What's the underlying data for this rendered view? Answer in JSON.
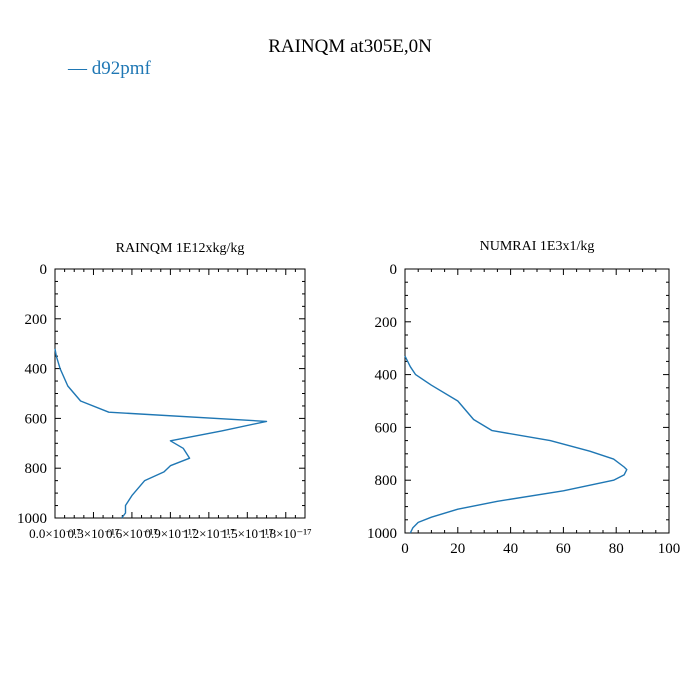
{
  "figure": {
    "title": "RAINQM at305E,0N",
    "legend": [
      {
        "label": "d92pmf",
        "symbol": "—",
        "color": "#1f77b4"
      }
    ]
  },
  "chart_data": [
    {
      "type": "line",
      "title": "RAINQM  1E12xkg/kg",
      "xlabel": "",
      "ylabel": "",
      "xlim": [
        0.0,
        1.95e-17
      ],
      "ylim": [
        1000,
        0
      ],
      "y_inverted": true,
      "x_ticks": [
        0,
        3e-18,
        6e-18,
        9e-18,
        1.2e-17,
        1.5e-17,
        1.8e-17
      ],
      "x_tick_labels": [
        "0.0×10⁻¹⁷",
        "0.3×10⁻¹⁷",
        "0.6×10⁻¹⁷",
        "0.9×10⁻¹⁷",
        "1.2×10⁻¹⁷",
        "1.5×10⁻¹⁷",
        "1.8×10⁻¹⁷"
      ],
      "y_ticks": [
        0,
        200,
        400,
        600,
        800,
        1000
      ],
      "y_tick_labels": [
        "0",
        "200",
        "400",
        "600",
        "800",
        "1000"
      ],
      "grid": false,
      "series": [
        {
          "name": "d92pmf",
          "color": "#1f77b4",
          "x": [
            0,
            1e-19,
            4e-19,
            1e-18,
            2e-18,
            4.2e-18,
            1.65e-17,
            1.3e-17,
            9e-18,
            1e-17,
            1.05e-17,
            9e-18,
            8.5e-18,
            7e-18,
            6e-18,
            5.5e-18,
            5.5e-18,
            5.2e-18
          ],
          "y": [
            320,
            350,
            400,
            470,
            530,
            575,
            612,
            650,
            690,
            720,
            760,
            790,
            815,
            850,
            910,
            950,
            980,
            1000
          ]
        }
      ]
    },
    {
      "type": "line",
      "title": "NUMRAI  1E3x1/kg",
      "xlabel": "",
      "ylabel": "",
      "xlim": [
        0,
        100
      ],
      "ylim": [
        1000,
        0
      ],
      "y_inverted": true,
      "x_ticks": [
        0,
        20,
        40,
        60,
        80,
        100
      ],
      "x_tick_labels": [
        "0",
        "20",
        "40",
        "60",
        "80",
        "100"
      ],
      "y_ticks": [
        0,
        200,
        400,
        600,
        800,
        1000
      ],
      "y_tick_labels": [
        "0",
        "200",
        "400",
        "600",
        "800",
        "1000"
      ],
      "grid": false,
      "series": [
        {
          "name": "d92pmf",
          "color": "#1f77b4",
          "x": [
            0,
            2,
            4,
            10,
            20,
            26,
            33,
            55,
            70,
            79,
            83,
            84,
            83,
            79,
            60,
            35,
            20,
            10,
            5,
            3,
            2
          ],
          "y": [
            330,
            370,
            400,
            440,
            500,
            570,
            612,
            650,
            690,
            720,
            750,
            760,
            780,
            800,
            840,
            880,
            910,
            940,
            960,
            980,
            1000
          ]
        }
      ]
    }
  ]
}
